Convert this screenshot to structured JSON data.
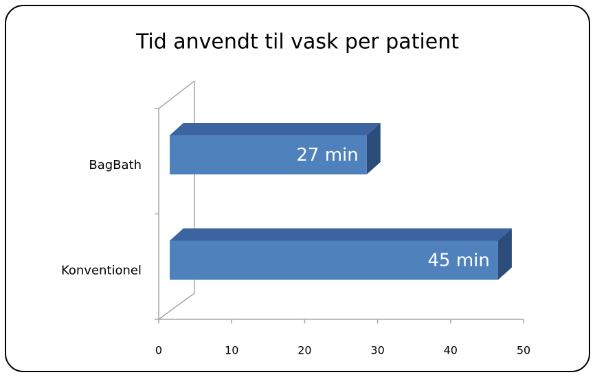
{
  "chart_data": {
    "type": "bar3d_horizontal",
    "title": "Tid anvendt til vask per patient",
    "categories": [
      "BagBath",
      "Konventionel"
    ],
    "values": [
      27,
      45
    ],
    "value_labels": [
      "27 min",
      "45 min"
    ],
    "color": "#4f81bd",
    "xlim": [
      0,
      50
    ],
    "xticks": [
      0,
      10,
      20,
      30,
      40,
      50
    ]
  }
}
